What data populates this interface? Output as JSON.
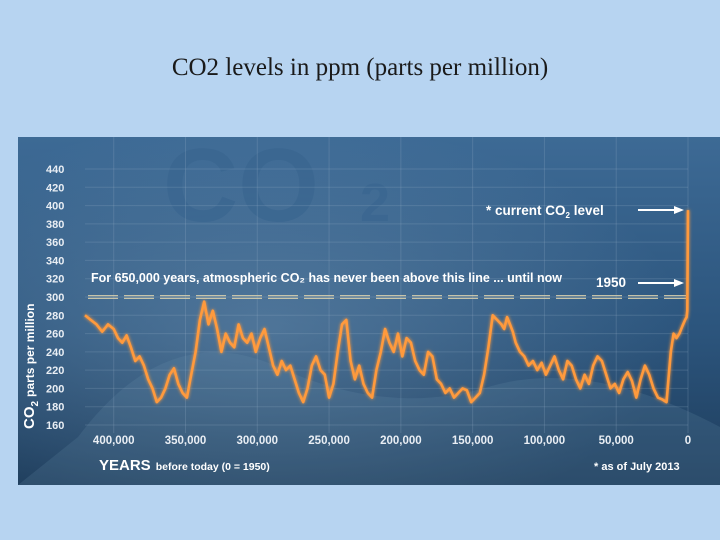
{
  "slide": {
    "title": "CO2 levels in ppm (parts per million)"
  },
  "colors": {
    "background": "#b7d4f1",
    "panel": "#2f5a84",
    "series_line": "#ff9a3c",
    "reference_line": "#c9c2a2"
  },
  "chart_data": {
    "type": "line",
    "title": "",
    "watermark": "CO",
    "watermark_sub": "2",
    "ylabel": "parts per million",
    "ylabel_main": "CO",
    "ylabel_sub": "2",
    "xlabel_bold": "YEARS",
    "xlabel_rest": "before today (0 = 1950)",
    "ylim": [
      160,
      440
    ],
    "yticks": [
      160,
      180,
      200,
      220,
      240,
      260,
      280,
      300,
      320,
      340,
      360,
      380,
      400,
      420,
      440
    ],
    "xlim": [
      420000,
      0
    ],
    "xticks": [
      {
        "value": 400000,
        "label": "400,000"
      },
      {
        "value": 350000,
        "label": "350,000"
      },
      {
        "value": 300000,
        "label": "300,000"
      },
      {
        "value": 250000,
        "label": "250,000"
      },
      {
        "value": 200000,
        "label": "200,000"
      },
      {
        "value": 150000,
        "label": "150,000"
      },
      {
        "value": 100000,
        "label": "100,000"
      },
      {
        "value": 50000,
        "label": "50,000"
      },
      {
        "value": 0,
        "label": "0"
      }
    ],
    "grid": true,
    "reference_line": {
      "y": 300,
      "label": "For 650,000 years, atmospheric CO₂ has never been above this line ... until now"
    },
    "annotations": [
      {
        "text_main": "* current CO",
        "text_sub": "2",
        "text_end": " level",
        "x": 0,
        "y": 395
      },
      {
        "text": "1950",
        "x": 0,
        "y": 310
      }
    ],
    "footnote": "* as of July 2013",
    "series": [
      {
        "x": [
          420000,
          416000,
          412000,
          408000,
          404000,
          400000,
          397000,
          394000,
          391000,
          388000,
          385000,
          382000,
          379000,
          376000,
          373000,
          370000,
          367000,
          364000,
          361000,
          358000,
          355000,
          352000,
          349000,
          346000,
          343000,
          340000,
          337000,
          334000,
          331000,
          328000,
          325000,
          322000,
          319000,
          316000,
          313000,
          310000,
          307000,
          304000,
          301000,
          298000,
          295000,
          292000,
          289000,
          286000,
          283000,
          280000,
          277000,
          274000,
          271000,
          268000,
          265000,
          262000,
          259000,
          256000,
          253000,
          250000,
          247000,
          244000,
          241000,
          238000,
          235000,
          232000,
          229000,
          226000,
          223000,
          220000,
          217000,
          214000,
          211000,
          208000,
          205000,
          202000,
          199000,
          196000,
          193000,
          190000,
          187000,
          184000,
          181000,
          178000,
          175000,
          172000,
          169000,
          166000,
          163000,
          160000,
          157000,
          154000,
          151000,
          148000,
          145000,
          142000,
          139000,
          136000,
          133000,
          130000,
          128000,
          126000,
          124000,
          122000,
          120000,
          117000,
          114000,
          111000,
          108000,
          105000,
          102000,
          99000,
          96000,
          93000,
          90000,
          87000,
          84000,
          81000,
          78000,
          75000,
          72000,
          69000,
          66000,
          63000,
          60000,
          57000,
          54000,
          51000,
          48000,
          45000,
          42000,
          39000,
          36000,
          33000,
          30000,
          27000,
          24000,
          21000,
          18000,
          15000,
          12000,
          10000,
          8000,
          6000,
          4000,
          2000,
          1000,
          500,
          0
        ],
        "y": [
          280,
          275,
          270,
          262,
          270,
          265,
          255,
          250,
          258,
          245,
          230,
          235,
          225,
          210,
          200,
          185,
          190,
          200,
          215,
          222,
          205,
          195,
          190,
          215,
          240,
          275,
          295,
          270,
          285,
          265,
          240,
          260,
          250,
          245,
          270,
          255,
          250,
          260,
          240,
          255,
          265,
          245,
          225,
          215,
          230,
          220,
          225,
          210,
          195,
          185,
          200,
          225,
          235,
          220,
          215,
          190,
          205,
          240,
          270,
          275,
          230,
          210,
          225,
          205,
          195,
          190,
          220,
          240,
          265,
          250,
          240,
          260,
          235,
          255,
          250,
          230,
          220,
          215,
          240,
          235,
          210,
          205,
          195,
          200,
          190,
          195,
          200,
          198,
          185,
          190,
          195,
          215,
          245,
          280,
          275,
          270,
          265,
          278,
          270,
          262,
          250,
          240,
          235,
          225,
          230,
          220,
          228,
          215,
          225,
          235,
          220,
          210,
          230,
          225,
          210,
          200,
          215,
          205,
          225,
          235,
          230,
          215,
          200,
          205,
          195,
          210,
          218,
          208,
          190,
          210,
          225,
          215,
          200,
          190,
          188,
          185,
          240,
          260,
          255,
          260,
          268,
          275,
          278,
          285,
          395
        ]
      }
    ]
  }
}
